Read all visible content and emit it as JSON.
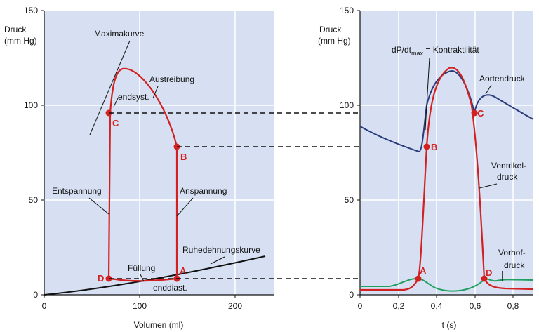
{
  "left_panel": {
    "ylabel_line1": "Druck",
    "ylabel_line2": "(mm Hg)",
    "xlabel": "Volumen (ml)",
    "yticks": [
      "0",
      "50",
      "100",
      "150"
    ],
    "xticks": [
      "0",
      "100",
      "200"
    ],
    "labels": {
      "maximakurve": "Maximakurve",
      "austreibung": "Austreibung",
      "endsyst": "endsyst.",
      "entspannung": "Entspannung",
      "anspannung": "Anspannung",
      "ruhedehnungskurve": "Ruhedehnungskurve",
      "fuellung": "Füllung",
      "enddiast": "enddiast."
    },
    "points": {
      "A": "A",
      "B": "B",
      "C": "C",
      "D": "D"
    }
  },
  "right_panel": {
    "ylabel_line1": "Druck",
    "ylabel_line2": "(mm Hg)",
    "xlabel": "t (s)",
    "yticks": [
      "0",
      "50",
      "100",
      "150"
    ],
    "xticks": [
      "0",
      "0,2",
      "0,4",
      "0,6",
      "0,8"
    ],
    "labels": {
      "dpdt": "dP/dt",
      "dpdt_sub": "max",
      "dpdt_rest": " = Kontraktilität",
      "aortendruck": "Aortendruck",
      "ventrikel1": "Ventrikel-",
      "ventrikel2": "druck",
      "vorhof1": "Vorhof-",
      "vorhof2": "druck"
    },
    "points": {
      "A": "A",
      "B": "B",
      "C": "C",
      "D": "D"
    }
  },
  "colors": {
    "panel_bg": "#d6e0f2",
    "grid": "#ffffff",
    "ventricle": "#d32020",
    "aorta": "#2a3a7a",
    "atrium": "#20a060",
    "passive": "#111111"
  }
}
